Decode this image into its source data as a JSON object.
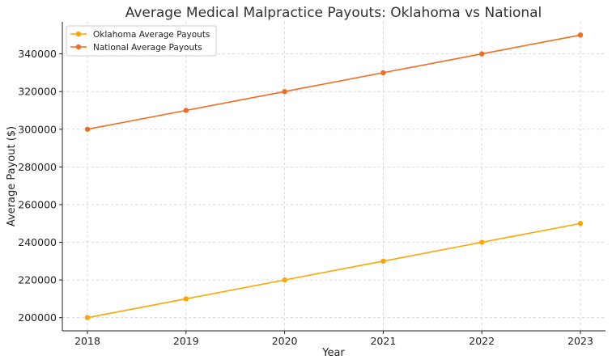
{
  "chart_data": {
    "type": "line",
    "title": "Average Medical Malpractice Payouts: Oklahoma vs National",
    "xlabel": "Year",
    "ylabel": "Average Payout ($)",
    "categories": [
      "2018",
      "2019",
      "2020",
      "2021",
      "2022",
      "2023"
    ],
    "y_ticks": [
      "200000",
      "220000",
      "240000",
      "260000",
      "280000",
      "300000",
      "320000",
      "340000"
    ],
    "ylim": [
      193000,
      357000
    ],
    "grid": true,
    "legend_position": "top-left",
    "series": [
      {
        "name": "Oklahoma Average Payouts",
        "color": "#FFA500",
        "values": [
          200000,
          210000,
          220000,
          230000,
          240000,
          250000
        ]
      },
      {
        "name": "National Average Payouts",
        "color": "#F26B21",
        "values": [
          300000,
          310000,
          320000,
          330000,
          340000,
          350000
        ]
      }
    ]
  }
}
